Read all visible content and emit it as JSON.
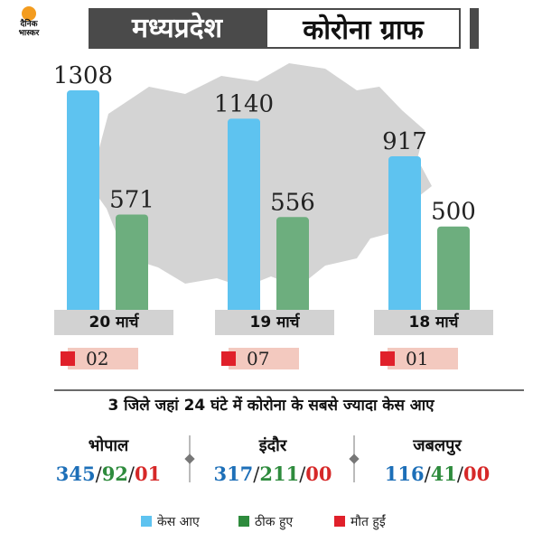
{
  "logo": {
    "text_line1": "दैनिक",
    "text_line2": "भास्कर"
  },
  "header": {
    "left": "मध्यप्रदेश",
    "right": "कोरोना ग्राफ"
  },
  "colors": {
    "cases": "#5ec3f0",
    "recovered": "#6dae7e",
    "deaths": "#e0202a",
    "header_bg": "#4a4a4a"
  },
  "chart_data": {
    "type": "bar",
    "categories": [
      "20 मार्च",
      "19 मार्च",
      "18 मार्च"
    ],
    "series": [
      {
        "name": "केस आए",
        "values": [
          1308,
          1140,
          917
        ]
      },
      {
        "name": "ठीक हुए",
        "values": [
          571,
          556,
          500
        ]
      }
    ],
    "deaths": [
      "02",
      "07",
      "01"
    ],
    "ylim": [
      0,
      1308
    ]
  },
  "subtitle": "3 जिले जहां 24 घंटे में कोरोना के सबसे ज्यादा केस आए",
  "districts": [
    {
      "name": "भोपाल",
      "cases": "345",
      "recovered": "92",
      "deaths": "01"
    },
    {
      "name": "इंदौर",
      "cases": "317",
      "recovered": "211",
      "deaths": "00"
    },
    {
      "name": "जबलपुर",
      "cases": "116",
      "recovered": "41",
      "deaths": "00"
    }
  ],
  "separator": "/",
  "legend": {
    "cases": "केस आए",
    "recovered": "ठीक हुए",
    "deaths": "मौत हुईं"
  }
}
